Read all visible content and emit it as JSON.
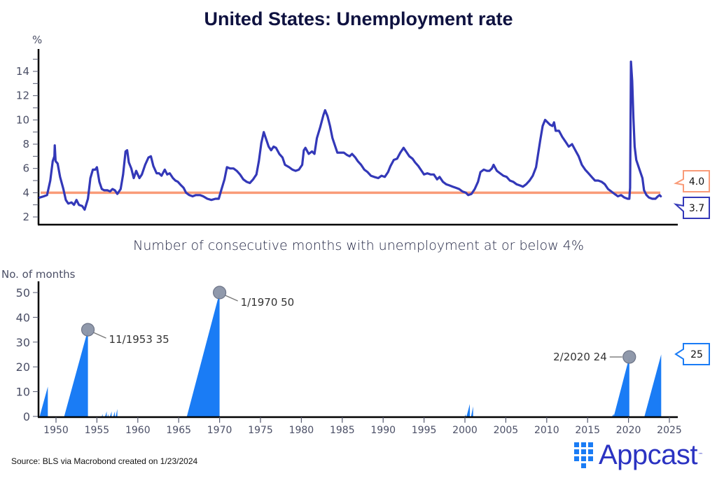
{
  "header": {
    "title": "United States: Unemployment rate"
  },
  "footer": {
    "source": "Source: BLS via Macrobond created on 1/23/2024",
    "logo_text": "Appcast",
    "logo_tm": "™"
  },
  "colors": {
    "line": "#3338b8",
    "threshold": "#f99b78",
    "area": "#1a7cf5",
    "marker": "#8a93a6",
    "axis": "#000000",
    "title": "#0f1240"
  },
  "chart_data": [
    {
      "type": "line",
      "title": "United States: Unemployment rate",
      "ylabel": "%",
      "xlabel": "",
      "ylim": [
        1.5,
        15.5
      ],
      "xlim": [
        1947.8,
        2025.5
      ],
      "yticks": [
        2,
        4,
        6,
        8,
        10,
        12,
        14
      ],
      "grid": false,
      "series": [
        {
          "name": "Unemployment rate",
          "points": [
            [
              1948.0,
              3.6
            ],
            [
              1948.5,
              3.7
            ],
            [
              1948.9,
              3.8
            ],
            [
              1949.3,
              5.0
            ],
            [
              1949.6,
              6.6
            ],
            [
              1949.8,
              7.0
            ],
            [
              1949.85,
              7.9
            ],
            [
              1949.95,
              6.6
            ],
            [
              1950.2,
              6.4
            ],
            [
              1950.5,
              5.3
            ],
            [
              1950.9,
              4.3
            ],
            [
              1951.2,
              3.4
            ],
            [
              1951.5,
              3.1
            ],
            [
              1951.9,
              3.2
            ],
            [
              1952.2,
              3.0
            ],
            [
              1952.5,
              3.4
            ],
            [
              1952.8,
              3.0
            ],
            [
              1953.2,
              2.9
            ],
            [
              1953.5,
              2.6
            ],
            [
              1953.9,
              3.5
            ],
            [
              1954.2,
              5.2
            ],
            [
              1954.5,
              5.9
            ],
            [
              1954.8,
              5.9
            ],
            [
              1955.0,
              6.1
            ],
            [
              1955.3,
              4.9
            ],
            [
              1955.6,
              4.3
            ],
            [
              1955.9,
              4.2
            ],
            [
              1956.3,
              4.2
            ],
            [
              1956.6,
              4.1
            ],
            [
              1956.9,
              4.3
            ],
            [
              1957.2,
              4.2
            ],
            [
              1957.5,
              3.9
            ],
            [
              1957.9,
              4.3
            ],
            [
              1958.2,
              5.5
            ],
            [
              1958.5,
              7.4
            ],
            [
              1958.7,
              7.5
            ],
            [
              1958.9,
              6.5
            ],
            [
              1959.2,
              6.0
            ],
            [
              1959.5,
              5.2
            ],
            [
              1959.8,
              5.8
            ],
            [
              1960.2,
              5.2
            ],
            [
              1960.5,
              5.5
            ],
            [
              1960.9,
              6.3
            ],
            [
              1961.3,
              6.9
            ],
            [
              1961.6,
              7.0
            ],
            [
              1961.9,
              6.2
            ],
            [
              1962.3,
              5.6
            ],
            [
              1962.6,
              5.6
            ],
            [
              1962.9,
              5.4
            ],
            [
              1963.3,
              5.9
            ],
            [
              1963.6,
              5.5
            ],
            [
              1963.9,
              5.6
            ],
            [
              1964.3,
              5.2
            ],
            [
              1964.6,
              5.0
            ],
            [
              1964.9,
              4.9
            ],
            [
              1965.3,
              4.6
            ],
            [
              1965.6,
              4.4
            ],
            [
              1965.9,
              4.0
            ],
            [
              1966.3,
              3.8
            ],
            [
              1966.7,
              3.7
            ],
            [
              1967.1,
              3.8
            ],
            [
              1967.6,
              3.8
            ],
            [
              1968.0,
              3.7
            ],
            [
              1968.5,
              3.5
            ],
            [
              1969.0,
              3.4
            ],
            [
              1969.5,
              3.5
            ],
            [
              1969.9,
              3.5
            ],
            [
              1970.2,
              4.2
            ],
            [
              1970.6,
              5.1
            ],
            [
              1970.9,
              6.1
            ],
            [
              1971.3,
              6.0
            ],
            [
              1971.7,
              6.0
            ],
            [
              1972.1,
              5.8
            ],
            [
              1972.5,
              5.5
            ],
            [
              1972.9,
              5.1
            ],
            [
              1973.3,
              4.9
            ],
            [
              1973.7,
              4.8
            ],
            [
              1974.1,
              5.1
            ],
            [
              1974.5,
              5.5
            ],
            [
              1974.8,
              6.6
            ],
            [
              1975.1,
              8.1
            ],
            [
              1975.4,
              9.0
            ],
            [
              1975.7,
              8.4
            ],
            [
              1976.0,
              7.8
            ],
            [
              1976.3,
              7.5
            ],
            [
              1976.6,
              7.8
            ],
            [
              1976.9,
              7.7
            ],
            [
              1977.3,
              7.2
            ],
            [
              1977.7,
              6.9
            ],
            [
              1978.0,
              6.3
            ],
            [
              1978.5,
              6.1
            ],
            [
              1978.9,
              5.9
            ],
            [
              1979.3,
              5.8
            ],
            [
              1979.7,
              5.9
            ],
            [
              1980.1,
              6.3
            ],
            [
              1980.3,
              7.5
            ],
            [
              1980.5,
              7.7
            ],
            [
              1980.9,
              7.2
            ],
            [
              1981.3,
              7.4
            ],
            [
              1981.6,
              7.2
            ],
            [
              1981.9,
              8.5
            ],
            [
              1982.3,
              9.4
            ],
            [
              1982.7,
              10.4
            ],
            [
              1982.9,
              10.8
            ],
            [
              1983.2,
              10.3
            ],
            [
              1983.5,
              9.5
            ],
            [
              1983.8,
              8.5
            ],
            [
              1984.1,
              7.9
            ],
            [
              1984.4,
              7.3
            ],
            [
              1984.8,
              7.3
            ],
            [
              1985.2,
              7.3
            ],
            [
              1985.6,
              7.1
            ],
            [
              1985.9,
              7.0
            ],
            [
              1986.2,
              7.2
            ],
            [
              1986.6,
              6.9
            ],
            [
              1986.9,
              6.6
            ],
            [
              1987.3,
              6.3
            ],
            [
              1987.7,
              5.9
            ],
            [
              1988.1,
              5.7
            ],
            [
              1988.5,
              5.4
            ],
            [
              1988.9,
              5.3
            ],
            [
              1989.4,
              5.2
            ],
            [
              1989.8,
              5.4
            ],
            [
              1990.2,
              5.3
            ],
            [
              1990.6,
              5.7
            ],
            [
              1990.9,
              6.2
            ],
            [
              1991.3,
              6.7
            ],
            [
              1991.7,
              6.8
            ],
            [
              1992.1,
              7.3
            ],
            [
              1992.5,
              7.7
            ],
            [
              1992.8,
              7.4
            ],
            [
              1993.2,
              7.0
            ],
            [
              1993.6,
              6.8
            ],
            [
              1993.9,
              6.5
            ],
            [
              1994.3,
              6.2
            ],
            [
              1994.7,
              5.8
            ],
            [
              1995.0,
              5.5
            ],
            [
              1995.4,
              5.6
            ],
            [
              1995.8,
              5.5
            ],
            [
              1996.2,
              5.5
            ],
            [
              1996.6,
              5.1
            ],
            [
              1996.9,
              5.3
            ],
            [
              1997.3,
              4.9
            ],
            [
              1997.7,
              4.7
            ],
            [
              1998.1,
              4.6
            ],
            [
              1998.5,
              4.5
            ],
            [
              1998.9,
              4.4
            ],
            [
              1999.3,
              4.3
            ],
            [
              1999.7,
              4.1
            ],
            [
              2000.1,
              4.0
            ],
            [
              2000.4,
              3.8
            ],
            [
              2000.8,
              3.9
            ],
            [
              2001.2,
              4.3
            ],
            [
              2001.6,
              4.9
            ],
            [
              2001.9,
              5.7
            ],
            [
              2002.3,
              5.9
            ],
            [
              2002.7,
              5.8
            ],
            [
              2003.0,
              5.8
            ],
            [
              2003.3,
              6.0
            ],
            [
              2003.5,
              6.3
            ],
            [
              2003.9,
              5.8
            ],
            [
              2004.3,
              5.6
            ],
            [
              2004.7,
              5.4
            ],
            [
              2005.1,
              5.3
            ],
            [
              2005.5,
              5.0
            ],
            [
              2005.9,
              4.9
            ],
            [
              2006.3,
              4.7
            ],
            [
              2006.7,
              4.6
            ],
            [
              2007.1,
              4.5
            ],
            [
              2007.5,
              4.7
            ],
            [
              2007.9,
              5.0
            ],
            [
              2008.3,
              5.4
            ],
            [
              2008.7,
              6.1
            ],
            [
              2008.9,
              7.0
            ],
            [
              2009.2,
              8.3
            ],
            [
              2009.5,
              9.5
            ],
            [
              2009.8,
              10.0
            ],
            [
              2010.1,
              9.8
            ],
            [
              2010.4,
              9.6
            ],
            [
              2010.7,
              9.5
            ],
            [
              2010.9,
              9.8
            ],
            [
              2011.1,
              9.1
            ],
            [
              2011.5,
              9.1
            ],
            [
              2011.9,
              8.6
            ],
            [
              2012.3,
              8.2
            ],
            [
              2012.7,
              7.8
            ],
            [
              2013.1,
              8.0
            ],
            [
              2013.5,
              7.5
            ],
            [
              2013.9,
              7.0
            ],
            [
              2014.3,
              6.3
            ],
            [
              2014.7,
              5.9
            ],
            [
              2015.1,
              5.6
            ],
            [
              2015.5,
              5.3
            ],
            [
              2015.9,
              5.0
            ],
            [
              2016.3,
              5.0
            ],
            [
              2016.7,
              4.9
            ],
            [
              2017.1,
              4.7
            ],
            [
              2017.5,
              4.3
            ],
            [
              2017.9,
              4.1
            ],
            [
              2018.3,
              3.9
            ],
            [
              2018.7,
              3.7
            ],
            [
              2019.1,
              3.8
            ],
            [
              2019.5,
              3.6
            ],
            [
              2019.9,
              3.5
            ],
            [
              2020.1,
              3.5
            ],
            [
              2020.2,
              4.4
            ],
            [
              2020.3,
              14.8
            ],
            [
              2020.45,
              13.2
            ],
            [
              2020.6,
              10.2
            ],
            [
              2020.75,
              7.8
            ],
            [
              2020.95,
              6.7
            ],
            [
              2021.3,
              6.0
            ],
            [
              2021.7,
              5.2
            ],
            [
              2021.9,
              4.2
            ],
            [
              2022.2,
              3.8
            ],
            [
              2022.5,
              3.6
            ],
            [
              2022.9,
              3.5
            ],
            [
              2023.3,
              3.5
            ],
            [
              2023.6,
              3.7
            ],
            [
              2023.8,
              3.8
            ],
            [
              2023.95,
              3.7
            ]
          ]
        }
      ],
      "threshold": {
        "name": "4% threshold",
        "value": 4.0
      },
      "end_labels": [
        {
          "series": "threshold",
          "text": "4.0"
        },
        {
          "series": "Unemployment rate",
          "text": "3.7"
        }
      ]
    },
    {
      "type": "area",
      "title": "Number of consecutive months with unemployment at or below 4%",
      "ylabel": "No. of months",
      "xlabel": "",
      "ylim": [
        0,
        52
      ],
      "xlim": [
        1947.8,
        2025.5
      ],
      "yticks": [
        0,
        10,
        20,
        30,
        40,
        50
      ],
      "xticks": [
        1950,
        1955,
        1960,
        1965,
        1970,
        1975,
        1980,
        1985,
        1990,
        1995,
        2000,
        2005,
        2010,
        2015,
        2020,
        2025
      ],
      "grid": false,
      "series": [
        {
          "name": "Consecutive months",
          "streaks": [
            {
              "start": 1948.0,
              "end": 1949.0,
              "peak": 12
            },
            {
              "start": 1951.0,
              "end": 1953.9,
              "peak": 35
            },
            {
              "start": 1955.6,
              "end": 1955.7,
              "peak": 1
            },
            {
              "start": 1956.0,
              "end": 1956.2,
              "peak": 2
            },
            {
              "start": 1956.3,
              "end": 1956.4,
              "peak": 1
            },
            {
              "start": 1956.6,
              "end": 1956.8,
              "peak": 2
            },
            {
              "start": 1957.0,
              "end": 1957.2,
              "peak": 2
            },
            {
              "start": 1957.3,
              "end": 1957.5,
              "peak": 3
            },
            {
              "start": 1966.0,
              "end": 1970.0,
              "peak": 50
            },
            {
              "start": 2000.0,
              "end": 2000.1,
              "peak": 1
            },
            {
              "start": 2000.2,
              "end": 2000.6,
              "peak": 5
            },
            {
              "start": 2000.75,
              "end": 2001.0,
              "peak": 4
            },
            {
              "start": 2018.0,
              "end": 2018.2,
              "peak": 1
            },
            {
              "start": 2018.2,
              "end": 2020.1,
              "peak": 24
            },
            {
              "start": 2021.95,
              "end": 2024.0,
              "peak": 25
            }
          ]
        }
      ],
      "annotations": [
        {
          "x": 1953.9,
          "y": 35,
          "text": "11/1953 35",
          "side": "right"
        },
        {
          "x": 1970.0,
          "y": 50,
          "text": "1/1970 50",
          "side": "right"
        },
        {
          "x": 2020.1,
          "y": 24,
          "text": "2/2020 24",
          "side": "left"
        }
      ],
      "end_labels": [
        {
          "series": "Consecutive months",
          "text": "25"
        }
      ]
    }
  ]
}
